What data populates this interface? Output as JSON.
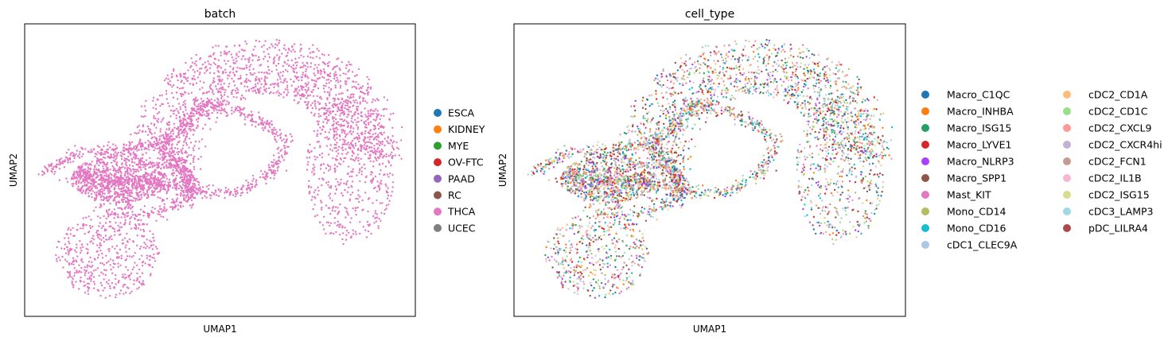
{
  "chart_data": [
    {
      "type": "scatter",
      "title": "batch",
      "xlabel": "UMAP1",
      "ylabel": "UMAP2",
      "grid": false,
      "ticks": false,
      "legend_position": "right",
      "xlim": [
        0,
        10
      ],
      "ylim": [
        0,
        7
      ],
      "series": [
        {
          "name": "ESCA",
          "color": "#1f77b4",
          "n_points": 0
        },
        {
          "name": "KIDNEY",
          "color": "#ff7f0e",
          "n_points": 0
        },
        {
          "name": "MYE",
          "color": "#2ca02c",
          "n_points": 0
        },
        {
          "name": "OV-FTC",
          "color": "#d62728",
          "n_points": 0
        },
        {
          "name": "PAAD",
          "color": "#9467bd",
          "n_points": 0
        },
        {
          "name": "RC",
          "color": "#8c564b",
          "n_points": 0
        },
        {
          "name": "THCA",
          "color": "#e377c2",
          "n_points": 4200
        },
        {
          "name": "UCEC",
          "color": "#7f7f7f",
          "n_points": 0
        }
      ]
    },
    {
      "type": "scatter",
      "title": "cell_type",
      "xlabel": "UMAP1",
      "ylabel": "UMAP2",
      "grid": false,
      "ticks": false,
      "legend_position": "right",
      "legend_columns": 2,
      "xlim": [
        0,
        10
      ],
      "ylim": [
        0,
        7
      ],
      "series": [
        {
          "name": "Macro_C1QC",
          "color": "#1f77b4"
        },
        {
          "name": "Macro_INHBA",
          "color": "#ff7f0e"
        },
        {
          "name": "Macro_ISG15",
          "color": "#279e68"
        },
        {
          "name": "Macro_LYVE1",
          "color": "#d62728"
        },
        {
          "name": "Macro_NLRP3",
          "color": "#aa40fc"
        },
        {
          "name": "Macro_SPP1",
          "color": "#8c564b"
        },
        {
          "name": "Mast_KIT",
          "color": "#e377c2"
        },
        {
          "name": "Mono_CD14",
          "color": "#b5bd61"
        },
        {
          "name": "Mono_CD16",
          "color": "#17becf"
        },
        {
          "name": "cDC1_CLEC9A",
          "color": "#aec7e8"
        },
        {
          "name": "cDC2_CD1A",
          "color": "#ffbb78"
        },
        {
          "name": "cDC2_CD1C",
          "color": "#98df8a"
        },
        {
          "name": "cDC2_CXCL9",
          "color": "#ff9896"
        },
        {
          "name": "cDC2_CXCR4hi",
          "color": "#c5b0d5"
        },
        {
          "name": "cDC2_FCN1",
          "color": "#c49c94"
        },
        {
          "name": "cDC2_IL1B",
          "color": "#f7b6d2"
        },
        {
          "name": "cDC2_ISG15",
          "color": "#dbdb8d"
        },
        {
          "name": "cDC3_LAMP3",
          "color": "#9edae5"
        },
        {
          "name": "pDC_LILRA4",
          "color": "#ad494a"
        }
      ]
    }
  ]
}
